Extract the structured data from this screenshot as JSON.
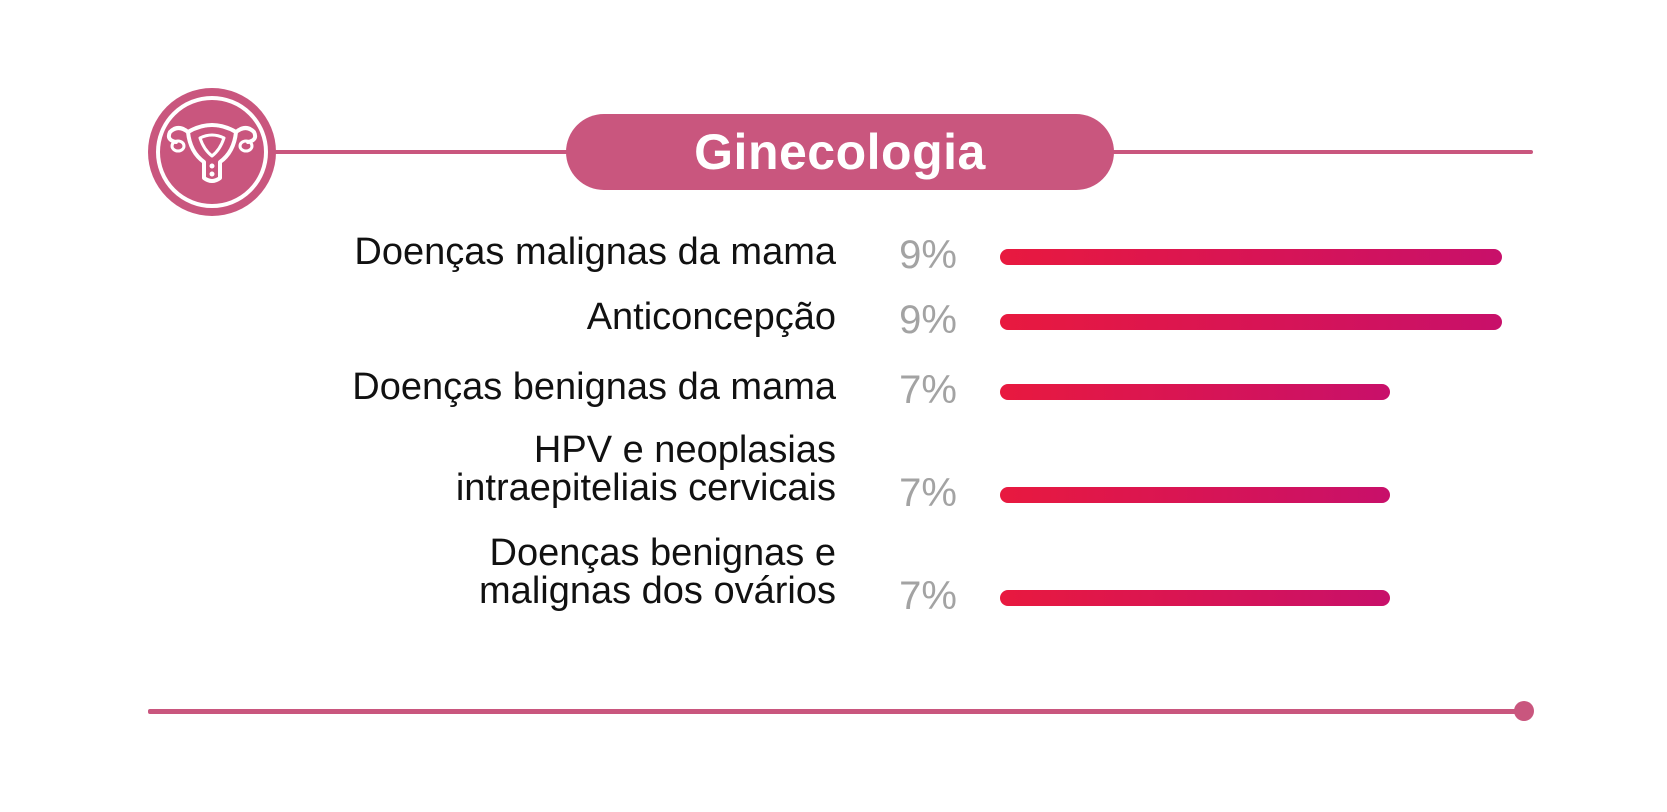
{
  "chart_data": {
    "type": "bar",
    "orientation": "horizontal",
    "title": "Ginecologia",
    "categories": [
      [
        "Doenças malignas da mama"
      ],
      [
        "Anticoncepção"
      ],
      [
        "Doenças benignas da mama"
      ],
      [
        "HPV e neoplasias",
        "intraepiteliais cervicais"
      ],
      [
        "Doenças benignas e",
        "malignas dos ovários"
      ]
    ],
    "values": [
      9,
      9,
      7,
      7,
      7
    ],
    "value_labels": [
      "9%",
      "9%",
      "7%",
      "7%",
      "7%"
    ],
    "xlim": [
      0,
      9
    ],
    "grid": false,
    "legend": "none",
    "colors": {
      "accent": "#c9567e",
      "bar_start": "#e8193f",
      "bar_end": "#c8106a",
      "percent_text": "#a3a3a3",
      "label_text": "#111111"
    },
    "icon": "uterus-icon"
  }
}
